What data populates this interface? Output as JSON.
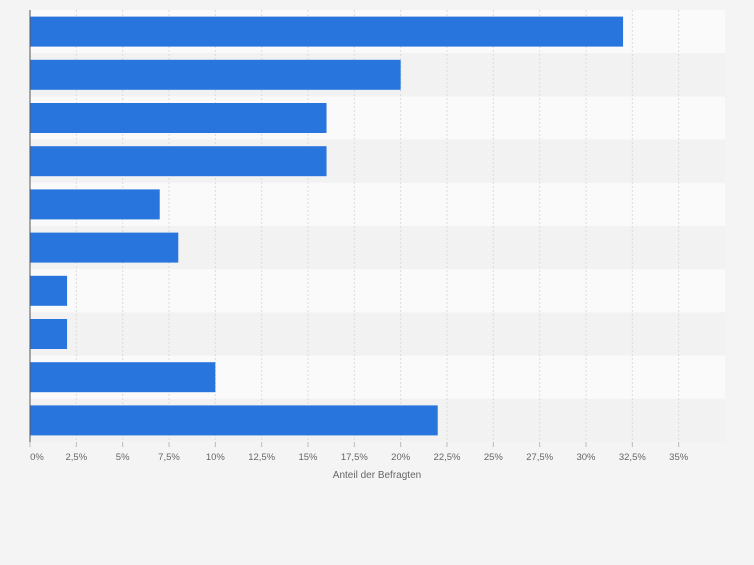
{
  "chart_data": {
    "type": "bar",
    "orientation": "horizontal",
    "categories": [
      "",
      "",
      "",
      "",
      "",
      "",
      "",
      "",
      "",
      ""
    ],
    "values": [
      32,
      20,
      16,
      16,
      7,
      8,
      2,
      2,
      10,
      22
    ],
    "xlabel": "Anteil der Befragten",
    "xlim": [
      0,
      37.5
    ],
    "xticks": [
      0,
      2.5,
      5,
      7.5,
      10,
      12.5,
      15,
      17.5,
      20,
      22.5,
      25,
      27.5,
      30,
      32.5,
      35
    ],
    "xtick_labels": [
      "0%",
      "2,5%",
      "5%",
      "7,5%",
      "10%",
      "12,5%",
      "15%",
      "17,5%",
      "20%",
      "22,5%",
      "25%",
      "27,5%",
      "30%",
      "32,5%",
      "35%"
    ],
    "grid": true,
    "colors": {
      "bar": "#2876dd",
      "grid": "#dcdcdc",
      "band_light": "#fafafa",
      "band_dark": "#f2f2f2",
      "axis": "#555555",
      "text": "#666666"
    }
  }
}
